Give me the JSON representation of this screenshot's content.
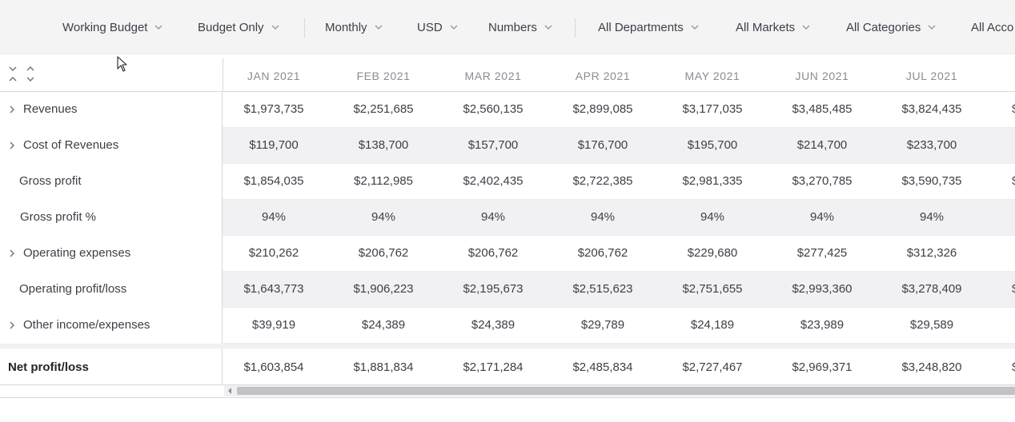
{
  "filters": [
    {
      "label": "Working Budget"
    },
    {
      "label": "Budget Only"
    },
    {
      "label": "Monthly"
    },
    {
      "label": "USD"
    },
    {
      "label": "Numbers"
    },
    {
      "label": "All Departments"
    },
    {
      "label": "All Markets"
    },
    {
      "label": "All Categories"
    },
    {
      "label": "All Acco"
    }
  ],
  "columns": [
    "JAN 2021",
    "FEB 2021",
    "MAR 2021",
    "APR 2021",
    "MAY 2021",
    "JUN 2021",
    "JUL 2021"
  ],
  "rows": [
    {
      "label": "Revenues",
      "values": [
        "$1,973,735",
        "$2,251,685",
        "$2,560,135",
        "$2,899,085",
        "$3,177,035",
        "$3,485,485",
        "$3,824,435"
      ],
      "clip": "$"
    },
    {
      "label": "Cost of Revenues",
      "values": [
        "$119,700",
        "$138,700",
        "$157,700",
        "$176,700",
        "$195,700",
        "$214,700",
        "$233,700"
      ],
      "clip": ""
    },
    {
      "label": "Gross profit",
      "values": [
        "$1,854,035",
        "$2,112,985",
        "$2,402,435",
        "$2,722,385",
        "$2,981,335",
        "$3,270,785",
        "$3,590,735"
      ],
      "clip": "$"
    },
    {
      "label": "Gross profit %",
      "values": [
        "94%",
        "94%",
        "94%",
        "94%",
        "94%",
        "94%",
        "94%"
      ],
      "clip": ""
    },
    {
      "label": "Operating expenses",
      "values": [
        "$210,262",
        "$206,762",
        "$206,762",
        "$206,762",
        "$229,680",
        "$277,425",
        "$312,326"
      ],
      "clip": ""
    },
    {
      "label": "Operating profit/loss",
      "values": [
        "$1,643,773",
        "$1,906,223",
        "$2,195,673",
        "$2,515,623",
        "$2,751,655",
        "$2,993,360",
        "$3,278,409"
      ],
      "clip": "$"
    },
    {
      "label": "Other income/expenses",
      "values": [
        "$39,919",
        "$24,389",
        "$24,389",
        "$29,789",
        "$24,189",
        "$23,989",
        "$29,589"
      ],
      "clip": ""
    }
  ],
  "net_row": {
    "label": "Net profit/loss",
    "values": [
      "$1,603,854",
      "$1,881,834",
      "$2,171,284",
      "$2,485,834",
      "$2,727,467",
      "$2,969,371",
      "$3,248,820"
    ],
    "clip": "$"
  },
  "colors": {
    "accent_text": "#3d3f47",
    "header_text": "#8a8c95",
    "alt_row": "#f1f1f4",
    "filter_bg": "#f4f4f5"
  },
  "icons": {
    "filter_dropdown": "chevron-down-icon",
    "row_expand": "chevron-right-icon",
    "collapse_all": "collapse-all-icon",
    "expand_all": "expand-all-icon"
  }
}
